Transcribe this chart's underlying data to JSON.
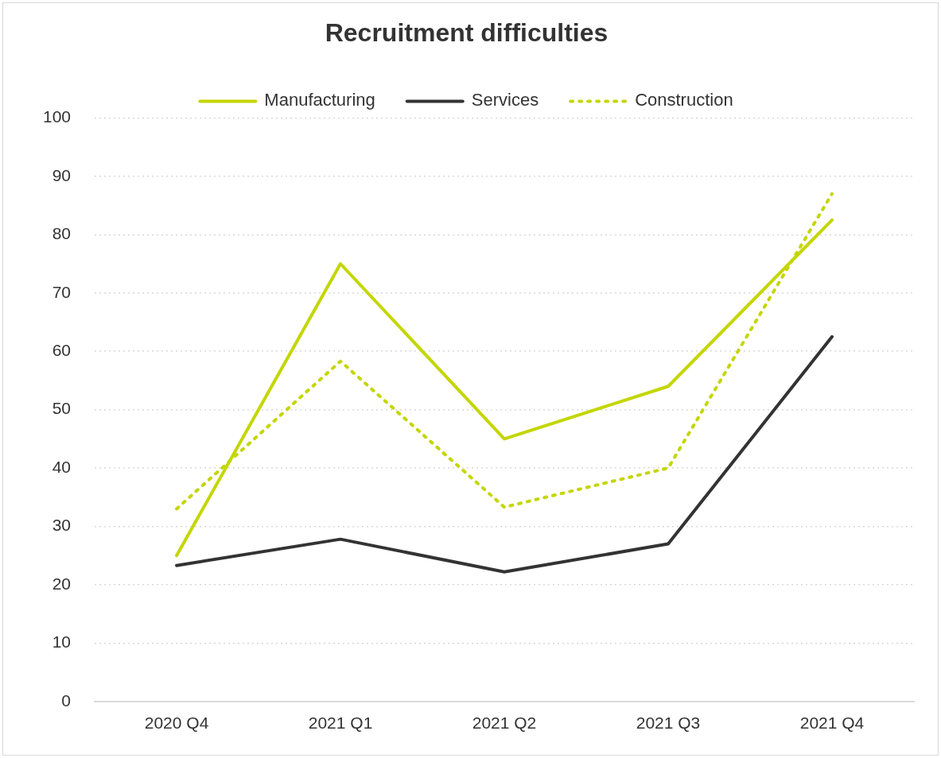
{
  "chart_data": {
    "type": "line",
    "title": "Recruitment difficulties",
    "categories": [
      "2020 Q4",
      "2021 Q1",
      "2021 Q2",
      "2021 Q3",
      "2021 Q4"
    ],
    "series": [
      {
        "name": "Manufacturing",
        "color": "#c4d600",
        "values": [
          25,
          75,
          45,
          54,
          82.5
        ],
        "line_style": "solid"
      },
      {
        "name": "Services",
        "color": "#333333",
        "values": [
          23.3,
          27.8,
          22.2,
          27,
          62.5
        ],
        "line_style": "solid"
      },
      {
        "name": "Construction",
        "color": "#c4d600",
        "values": [
          33,
          58.3,
          33.3,
          40,
          87
        ],
        "line_style": "dotted"
      }
    ],
    "ylim": [
      0,
      100
    ],
    "yticks": [
      0,
      10,
      20,
      30,
      40,
      50,
      60,
      70,
      80,
      90,
      100
    ],
    "grid": "y",
    "legend": "top",
    "marker": "none"
  }
}
